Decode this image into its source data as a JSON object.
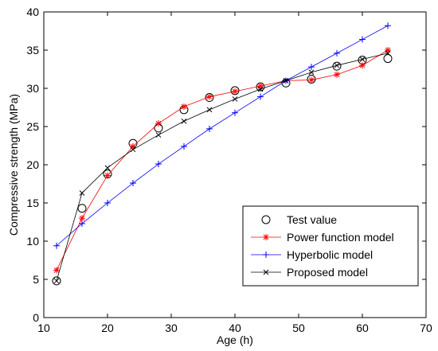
{
  "chart_data": {
    "type": "line",
    "title": "",
    "xlabel": "Age (h)",
    "ylabel": "Compressive strength (MPa)",
    "xlim": [
      10,
      70
    ],
    "ylim": [
      0,
      40
    ],
    "xticks": [
      10,
      20,
      30,
      40,
      50,
      60,
      70
    ],
    "yticks": [
      0,
      5,
      10,
      15,
      20,
      25,
      30,
      35,
      40
    ],
    "grid": false,
    "legend_position": "bottom-right",
    "x": [
      12,
      16,
      20,
      24,
      28,
      32,
      36,
      40,
      44,
      48,
      52,
      56,
      60,
      64
    ],
    "series": [
      {
        "name": "Test value",
        "marker": "circle",
        "line": false,
        "color": "#000000",
        "values": [
          4.8,
          14.3,
          18.8,
          22.8,
          24.8,
          27.2,
          28.8,
          29.7,
          30.2,
          30.7,
          31.2,
          32.9,
          33.7,
          33.9
        ]
      },
      {
        "name": "Power function model",
        "marker": "asterisk",
        "line": true,
        "color": "#ff0000",
        "values": [
          6.2,
          13.0,
          18.6,
          22.4,
          25.4,
          27.6,
          28.9,
          29.6,
          30.3,
          31.0,
          31.1,
          31.8,
          33.0,
          35.0
        ]
      },
      {
        "name": "Hyperbolic model",
        "marker": "plus",
        "line": true,
        "color": "#0000ff",
        "values": [
          9.4,
          12.3,
          15.0,
          17.6,
          20.1,
          22.4,
          24.7,
          26.8,
          28.9,
          31.0,
          32.8,
          34.6,
          36.4,
          38.2
        ]
      },
      {
        "name": "Proposed model",
        "marker": "x",
        "line": true,
        "color": "#000000",
        "values": [
          4.8,
          16.3,
          19.6,
          22.0,
          23.9,
          25.7,
          27.2,
          28.6,
          29.9,
          31.0,
          32.1,
          33.0,
          33.8,
          34.6
        ]
      }
    ]
  }
}
